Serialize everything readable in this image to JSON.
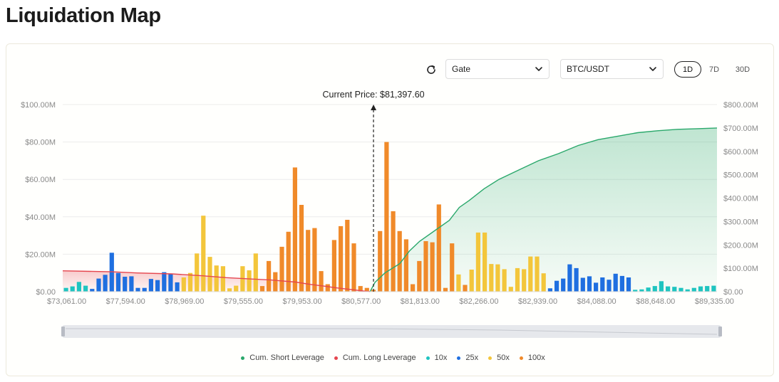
{
  "page": {
    "title": "Liquidation Map"
  },
  "controls": {
    "exchange": "Gate",
    "pair": "BTC/USDT",
    "ranges": [
      "1D",
      "7D",
      "30D"
    ],
    "active_range": "1D"
  },
  "colors": {
    "short": "#2aa86b",
    "long": "#e5464f",
    "lev10x": "#1fc4c0",
    "lev25x": "#1f6fe0",
    "lev50x": "#f3c63b",
    "lev100x": "#f08a2a"
  },
  "chart_data": {
    "type": "bar",
    "annotation": "Current Price: $81,397.60",
    "current_price_index": 47.5,
    "x_tick_labels": [
      "$73,061.00",
      "$77,594.00",
      "$78,969.00",
      "$79,555.00",
      "$79,953.00",
      "$80,577.00",
      "$81,813.00",
      "$82,266.00",
      "$82,939.00",
      "$84,088.00",
      "$88,648.00",
      "$89,335.00"
    ],
    "x_tick_indices": [
      0,
      9,
      18,
      27,
      36,
      45,
      54,
      63,
      72,
      81,
      90,
      99
    ],
    "left_axis": {
      "ylim": [
        0,
        100
      ],
      "tick_labels": [
        "$0.00",
        "$20.00M",
        "$40.00M",
        "$60.00M",
        "$80.00M",
        "$100.00M"
      ]
    },
    "right_axis": {
      "ylim": [
        0,
        800
      ],
      "tick_labels": [
        "$0.00",
        "$100.00M",
        "$200.00M",
        "$300.00M",
        "$400.00M",
        "$500.00M",
        "$600.00M",
        "$700.00M",
        "$800.00M"
      ]
    },
    "bars": [
      {
        "l": "10x",
        "v": 2.0
      },
      {
        "l": "10x",
        "v": 2.8
      },
      {
        "l": "10x",
        "v": 5.2
      },
      {
        "l": "10x",
        "v": 3.2
      },
      {
        "l": "25x",
        "v": 1.5
      },
      {
        "l": "25x",
        "v": 7.0
      },
      {
        "l": "25x",
        "v": 9.0
      },
      {
        "l": "25x",
        "v": 20.8
      },
      {
        "l": "25x",
        "v": 10.0
      },
      {
        "l": "25x",
        "v": 8.0
      },
      {
        "l": "25x",
        "v": 8.2
      },
      {
        "l": "25x",
        "v": 2.0
      },
      {
        "l": "25x",
        "v": 2.0
      },
      {
        "l": "25x",
        "v": 6.8
      },
      {
        "l": "25x",
        "v": 6.2
      },
      {
        "l": "25x",
        "v": 10.4
      },
      {
        "l": "25x",
        "v": 9.4
      },
      {
        "l": "25x",
        "v": 5.0
      },
      {
        "l": "50x",
        "v": 7.6
      },
      {
        "l": "50x",
        "v": 10.0
      },
      {
        "l": "50x",
        "v": 20.4
      },
      {
        "l": "50x",
        "v": 40.6
      },
      {
        "l": "50x",
        "v": 18.6
      },
      {
        "l": "50x",
        "v": 14.0
      },
      {
        "l": "50x",
        "v": 13.6
      },
      {
        "l": "50x",
        "v": 1.8
      },
      {
        "l": "50x",
        "v": 3.2
      },
      {
        "l": "50x",
        "v": 13.6
      },
      {
        "l": "50x",
        "v": 11.4
      },
      {
        "l": "50x",
        "v": 20.4
      },
      {
        "l": "100x",
        "v": 3.0
      },
      {
        "l": "100x",
        "v": 16.4
      },
      {
        "l": "100x",
        "v": 10.4
      },
      {
        "l": "100x",
        "v": 24.0
      },
      {
        "l": "100x",
        "v": 32.0
      },
      {
        "l": "100x",
        "v": 66.4
      },
      {
        "l": "100x",
        "v": 46.4
      },
      {
        "l": "100x",
        "v": 33.0
      },
      {
        "l": "100x",
        "v": 34.0
      },
      {
        "l": "100x",
        "v": 11.0
      },
      {
        "l": "100x",
        "v": 4.0
      },
      {
        "l": "100x",
        "v": 27.6
      },
      {
        "l": "100x",
        "v": 35.0
      },
      {
        "l": "100x",
        "v": 38.4
      },
      {
        "l": "100x",
        "v": 25.8
      },
      {
        "l": "100x",
        "v": 3.0
      },
      {
        "l": "100x",
        "v": 2.0
      },
      {
        "l": "100x",
        "v": 1.0
      },
      {
        "l": "100x",
        "v": 32.4
      },
      {
        "l": "100x",
        "v": 80.0
      },
      {
        "l": "100x",
        "v": 43.0
      },
      {
        "l": "100x",
        "v": 32.4
      },
      {
        "l": "100x",
        "v": 28.0
      },
      {
        "l": "100x",
        "v": 4.0
      },
      {
        "l": "100x",
        "v": 16.4
      },
      {
        "l": "100x",
        "v": 27.0
      },
      {
        "l": "100x",
        "v": 26.4
      },
      {
        "l": "100x",
        "v": 46.6
      },
      {
        "l": "100x",
        "v": 2.0
      },
      {
        "l": "100x",
        "v": 25.8
      },
      {
        "l": "50x",
        "v": 9.2
      },
      {
        "l": "100x",
        "v": 3.6
      },
      {
        "l": "50x",
        "v": 11.8
      },
      {
        "l": "50x",
        "v": 31.6
      },
      {
        "l": "50x",
        "v": 31.6
      },
      {
        "l": "50x",
        "v": 14.8
      },
      {
        "l": "50x",
        "v": 14.6
      },
      {
        "l": "50x",
        "v": 12.0
      },
      {
        "l": "50x",
        "v": 2.6
      },
      {
        "l": "50x",
        "v": 12.6
      },
      {
        "l": "50x",
        "v": 12.0
      },
      {
        "l": "50x",
        "v": 18.8
      },
      {
        "l": "50x",
        "v": 18.8
      },
      {
        "l": "50x",
        "v": 9.8
      },
      {
        "l": "25x",
        "v": 1.8
      },
      {
        "l": "25x",
        "v": 5.8
      },
      {
        "l": "25x",
        "v": 7.0
      },
      {
        "l": "25x",
        "v": 14.6
      },
      {
        "l": "25x",
        "v": 12.6
      },
      {
        "l": "25x",
        "v": 7.4
      },
      {
        "l": "25x",
        "v": 8.2
      },
      {
        "l": "25x",
        "v": 4.8
      },
      {
        "l": "25x",
        "v": 7.6
      },
      {
        "l": "25x",
        "v": 6.4
      },
      {
        "l": "25x",
        "v": 9.6
      },
      {
        "l": "25x",
        "v": 8.4
      },
      {
        "l": "25x",
        "v": 7.6
      },
      {
        "l": "10x",
        "v": 1.0
      },
      {
        "l": "10x",
        "v": 1.2
      },
      {
        "l": "10x",
        "v": 2.2
      },
      {
        "l": "10x",
        "v": 3.0
      },
      {
        "l": "10x",
        "v": 5.6
      },
      {
        "l": "10x",
        "v": 2.8
      },
      {
        "l": "10x",
        "v": 2.6
      },
      {
        "l": "10x",
        "v": 2.0
      },
      {
        "l": "10x",
        "v": 1.2
      },
      {
        "l": "10x",
        "v": 2.0
      },
      {
        "l": "10x",
        "v": 2.8
      },
      {
        "l": "10x",
        "v": 3.0
      },
      {
        "l": "10x",
        "v": 3.2
      }
    ],
    "cum_long": [
      [
        0,
        89
      ],
      [
        10,
        85
      ],
      [
        15,
        80
      ],
      [
        22,
        76
      ],
      [
        28,
        68
      ],
      [
        33,
        60
      ],
      [
        38,
        54
      ],
      [
        42,
        50
      ],
      [
        47,
        41
      ],
      [
        50,
        31
      ],
      [
        53,
        23
      ],
      [
        55,
        17
      ],
      [
        57,
        12
      ],
      [
        59,
        7
      ],
      [
        61,
        2
      ],
      [
        62,
        0
      ]
    ],
    "cum_short": [
      [
        62,
        0
      ],
      [
        63,
        40
      ],
      [
        65,
        80
      ],
      [
        68,
        120
      ],
      [
        70,
        175
      ],
      [
        72,
        215
      ],
      [
        75,
        260
      ],
      [
        78,
        305
      ],
      [
        80,
        360
      ],
      [
        82,
        390
      ],
      [
        85,
        440
      ],
      [
        88,
        480
      ],
      [
        92,
        520
      ],
      [
        96,
        560
      ],
      [
        100,
        590
      ],
      [
        104,
        625
      ],
      [
        108,
        650
      ],
      [
        112,
        665
      ],
      [
        116,
        680
      ],
      [
        120,
        688
      ],
      [
        124,
        694
      ],
      [
        128,
        697
      ],
      [
        132,
        700
      ]
    ],
    "cum_curve_x_domain": [
      0,
      132
    ],
    "legend": [
      {
        "label": "Cum. Short Leverage",
        "key": "short"
      },
      {
        "label": "Cum. Long Leverage",
        "key": "long"
      },
      {
        "label": "10x",
        "key": "lev10x"
      },
      {
        "label": "25x",
        "key": "lev25x"
      },
      {
        "label": "50x",
        "key": "lev50x"
      },
      {
        "label": "100x",
        "key": "lev100x"
      }
    ]
  }
}
